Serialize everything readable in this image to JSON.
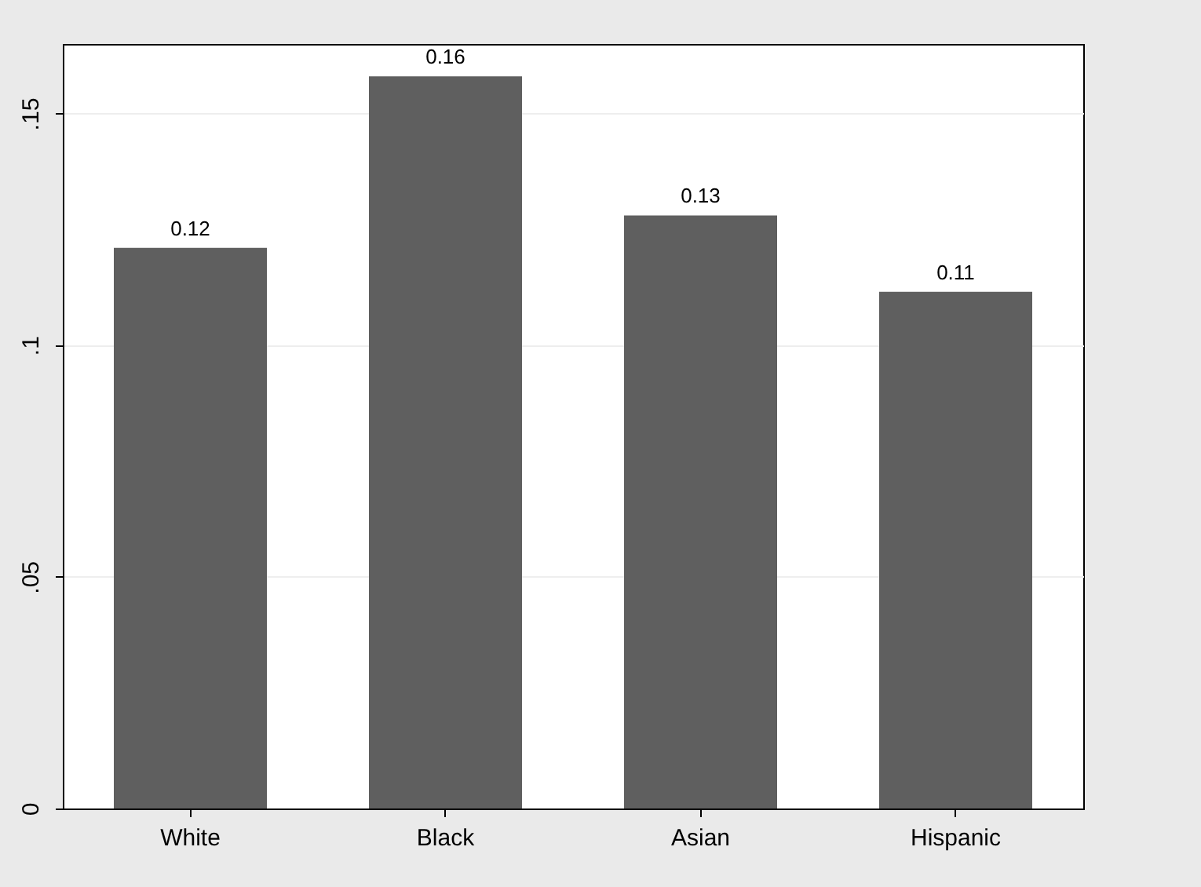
{
  "chart_data": {
    "type": "bar",
    "categories": [
      "White",
      "Black",
      "Asian",
      "Hispanic"
    ],
    "values": [
      0.121,
      0.158,
      0.128,
      0.1115
    ],
    "value_labels": [
      "0.12",
      "0.16",
      "0.13",
      "0.11"
    ],
    "color": "#5f5f5f",
    "ylim": [
      0,
      0.165
    ],
    "yticks": [
      0,
      {
        "value": 0.05,
        "label": ".05"
      },
      {
        "value": 0.1,
        "label": ".1"
      },
      {
        "value": 0.15,
        "label": ".15"
      }
    ],
    "grid": "y"
  }
}
